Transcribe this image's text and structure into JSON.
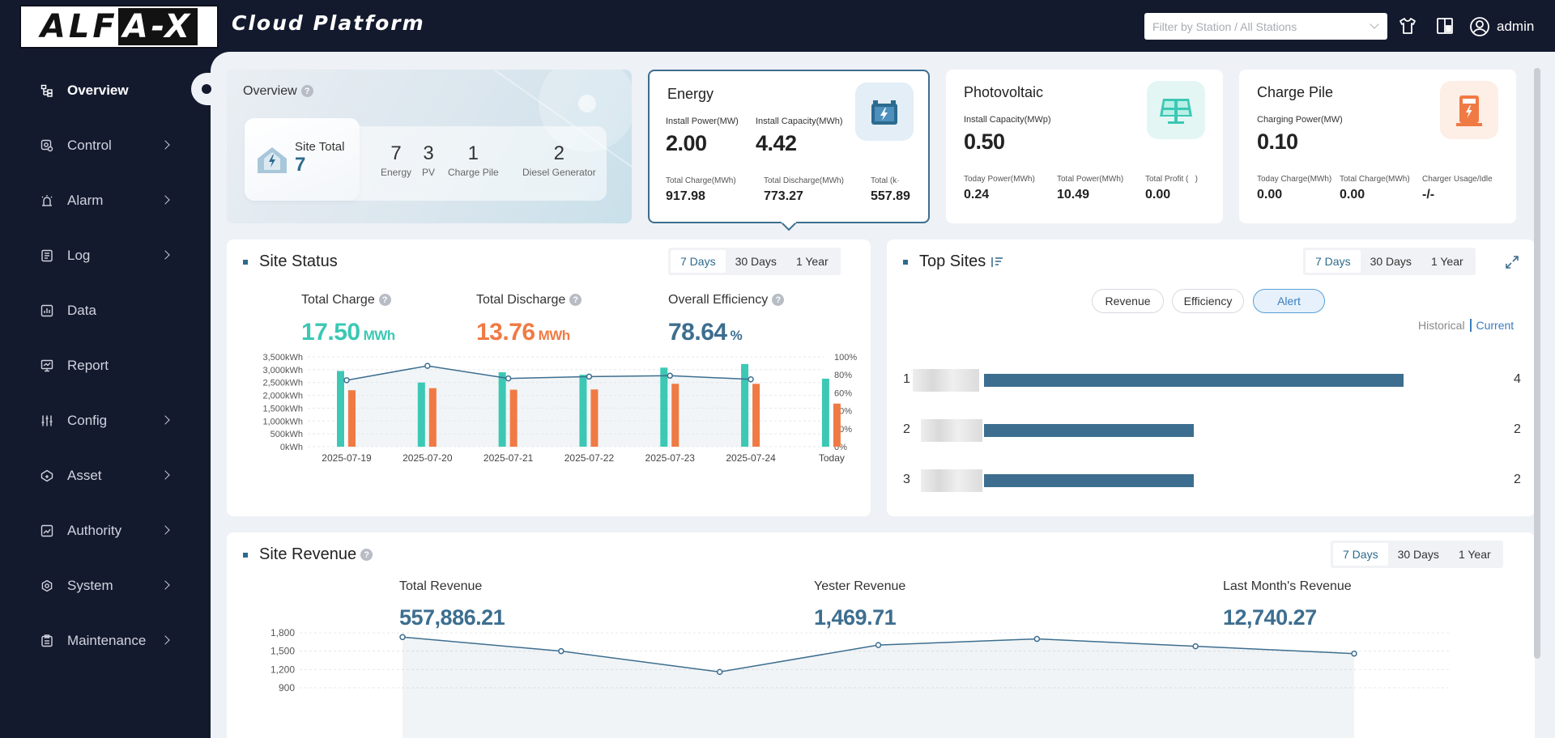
{
  "header": {
    "logo_a": "ALF",
    "logo_b": "A-X",
    "title": "Cloud Platform",
    "station_filter_placeholder": "Filter by Station / All Stations",
    "user": "admin"
  },
  "sidebar": {
    "items": [
      {
        "label": "Overview",
        "icon": "overview-icon",
        "active": true,
        "expandable": false
      },
      {
        "label": "Control",
        "icon": "control-icon",
        "expandable": true
      },
      {
        "label": "Alarm",
        "icon": "alarm-icon",
        "expandable": true
      },
      {
        "label": "Log",
        "icon": "log-icon",
        "expandable": true
      },
      {
        "label": "Data",
        "icon": "data-icon",
        "expandable": false
      },
      {
        "label": "Report",
        "icon": "report-icon",
        "expandable": false
      },
      {
        "label": "Config",
        "icon": "config-icon",
        "expandable": true
      },
      {
        "label": "Asset",
        "icon": "asset-icon",
        "expandable": true
      },
      {
        "label": "Authority",
        "icon": "authority-icon",
        "expandable": true
      },
      {
        "label": "System",
        "icon": "system-icon",
        "expandable": true
      },
      {
        "label": "Maintenance",
        "icon": "maintenance-icon",
        "expandable": true
      }
    ]
  },
  "overview": {
    "title": "Overview",
    "help": "?",
    "site_total_label": "Site Total",
    "site_total_value": "7",
    "stats": [
      {
        "value": "7",
        "label": "Energy"
      },
      {
        "value": "3",
        "label": "PV"
      },
      {
        "value": "1",
        "label": "Charge Pile"
      },
      {
        "value": "2",
        "label": "Diesel Generator"
      }
    ]
  },
  "energy": {
    "title": "Energy",
    "install_power_label": "Install Power(MW)",
    "install_power_value": "2.00",
    "install_capacity_label": "Install Capacity(MWh)",
    "install_capacity_value": "4.42",
    "total_charge_label": "Total Charge(MWh)",
    "total_charge_value": "917.98",
    "total_discharge_label": "Total Discharge(MWh)",
    "total_discharge_value": "773.27",
    "total_k_label": "Total (k·",
    "total_k_value": "557.89"
  },
  "photovoltaic": {
    "title": "Photovoltaic",
    "install_capacity_label": "Install Capacity(MWp)",
    "install_capacity_value": "0.50",
    "today_power_label": "Today Power(MWh)",
    "today_power_value": "0.24",
    "total_power_label": "Total Power(MWh)",
    "total_power_value": "10.49",
    "total_profit_label": "Total Profit (   )",
    "total_profit_value": "0.00"
  },
  "charge_pile": {
    "title": "Charge Pile",
    "charging_power_label": "Charging Power(MW)",
    "charging_power_value": "0.10",
    "today_charge_label": "Today Charge(MWh)",
    "today_charge_value": "0.00",
    "total_charge_label": "Total Charge(MWh)",
    "total_charge_value": "0.00",
    "usage_label": "Charger Usage/Idle",
    "usage_value": "-/-"
  },
  "site_status": {
    "title": "Site Status",
    "ranges": [
      "7 Days",
      "30 Days",
      "1 Year"
    ],
    "total_charge_label": "Total Charge",
    "total_charge_value": "17.50",
    "total_charge_unit": "MWh",
    "total_discharge_label": "Total Discharge",
    "total_discharge_value": "13.76",
    "total_discharge_unit": "MWh",
    "efficiency_label": "Overall Efficiency",
    "efficiency_value": "78.64",
    "efficiency_unit": "%"
  },
  "top_sites": {
    "title": "Top Sites",
    "ranges": [
      "7 Days",
      "30 Days",
      "1 Year"
    ],
    "tabs": [
      "Revenue",
      "Efficiency",
      "Alert"
    ],
    "historical": "Historical",
    "current": "Current",
    "rows": [
      {
        "rank": "1",
        "value": "4"
      },
      {
        "rank": "2",
        "value": "2"
      },
      {
        "rank": "3",
        "value": "2"
      }
    ]
  },
  "site_revenue": {
    "title": "Site Revenue",
    "ranges": [
      "7 Days",
      "30 Days",
      "1 Year"
    ],
    "total_label": "Total Revenue",
    "total_value": "557,886.21",
    "yester_label": "Yester Revenue",
    "yester_value": "1,469.71",
    "last_month_label": "Last Month's Revenue",
    "last_month_value": "12,740.27"
  },
  "chart_data": [
    {
      "type": "bar",
      "name": "site-status-chart",
      "categories": [
        "2025-07-19",
        "2025-07-20",
        "2025-07-21",
        "2025-07-22",
        "2025-07-23",
        "2025-07-24",
        "Today"
      ],
      "y_ticks": [
        "3,500kWh",
        "3,000kWh",
        "2,500kWh",
        "2,000kWh",
        "1,500kWh",
        "1,000kWh",
        "500kWh",
        "0kWh"
      ],
      "y2_ticks": [
        "100%",
        "80%",
        "60%",
        "40%",
        "20%",
        "0%"
      ],
      "ylim": [
        0,
        3500
      ],
      "y2lim": [
        0,
        100
      ],
      "series": [
        {
          "kind": "bar",
          "color": "#3cc8b4",
          "values": [
            2950,
            2500,
            2900,
            2800,
            3080,
            3220,
            2650
          ]
        },
        {
          "kind": "bar",
          "color": "#f07a44",
          "values": [
            2200,
            2280,
            2220,
            2230,
            2450,
            2450,
            1680
          ]
        },
        {
          "kind": "line",
          "axis": "y2",
          "color": "#3d6e8f",
          "values": [
            74,
            90,
            76,
            78,
            79,
            75,
            null
          ]
        }
      ],
      "grid": true
    },
    {
      "type": "line",
      "name": "site-revenue-chart",
      "y_ticks": [
        "1,800",
        "1,500",
        "1,200",
        "900"
      ],
      "ylim": [
        900,
        1800
      ],
      "values": [
        1730,
        1500,
        1160,
        1600,
        1700,
        1580,
        1460
      ],
      "color": "#3d6e8f",
      "grid": true
    }
  ]
}
